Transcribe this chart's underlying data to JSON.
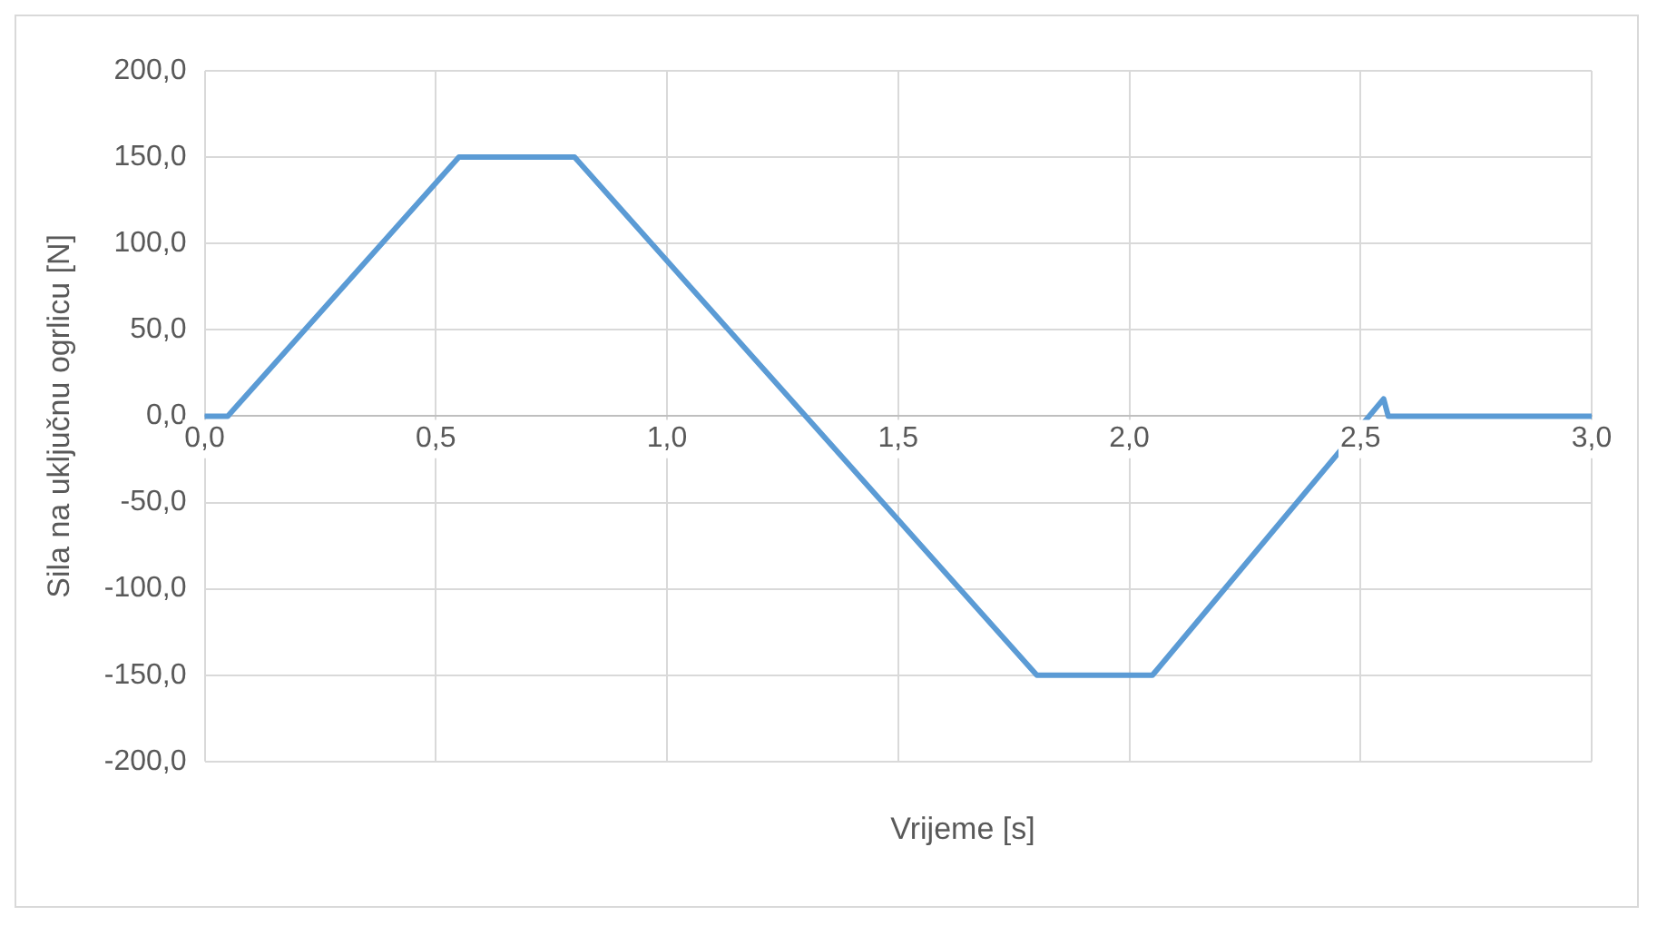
{
  "chart_data": {
    "type": "line",
    "xlabel": "Vrijeme [s]",
    "ylabel": "Sila na uključnu ogrlicu [N]",
    "x": [
      0,
      0.05,
      0.55,
      0.8,
      1.8,
      2.05,
      2.55,
      2.56,
      3.0
    ],
    "series": [
      {
        "color": "#5b9bd5",
        "values": [
          0,
          0,
          150,
          150,
          -150,
          -150,
          10,
          0,
          0
        ]
      }
    ],
    "xlim": [
      0,
      3.0
    ],
    "xticks": [
      {
        "value": 0,
        "label": "0,0"
      },
      {
        "value": 0.5,
        "label": "0,5"
      },
      {
        "value": 1,
        "label": "1,0"
      },
      {
        "value": 1.5,
        "label": "1,5"
      },
      {
        "value": 2,
        "label": "2,0"
      },
      {
        "value": 2.5,
        "label": "2,5"
      },
      {
        "value": 3,
        "label": "3,0"
      }
    ],
    "ylim": [
      -200,
      200
    ],
    "yticks": [
      {
        "value": -200,
        "label": "-200,0"
      },
      {
        "value": -150,
        "label": "-150,0"
      },
      {
        "value": -100,
        "label": "-100,0"
      },
      {
        "value": -50,
        "label": "-50,0"
      },
      {
        "value": 0,
        "label": "0,0"
      },
      {
        "value": 50,
        "label": "50,0"
      },
      {
        "value": 100,
        "label": "100,0"
      },
      {
        "value": 150,
        "label": "150,0"
      },
      {
        "value": 200,
        "label": "200,0"
      }
    ],
    "grid": true,
    "legend": false,
    "marker": "none",
    "line_style": "solid"
  }
}
